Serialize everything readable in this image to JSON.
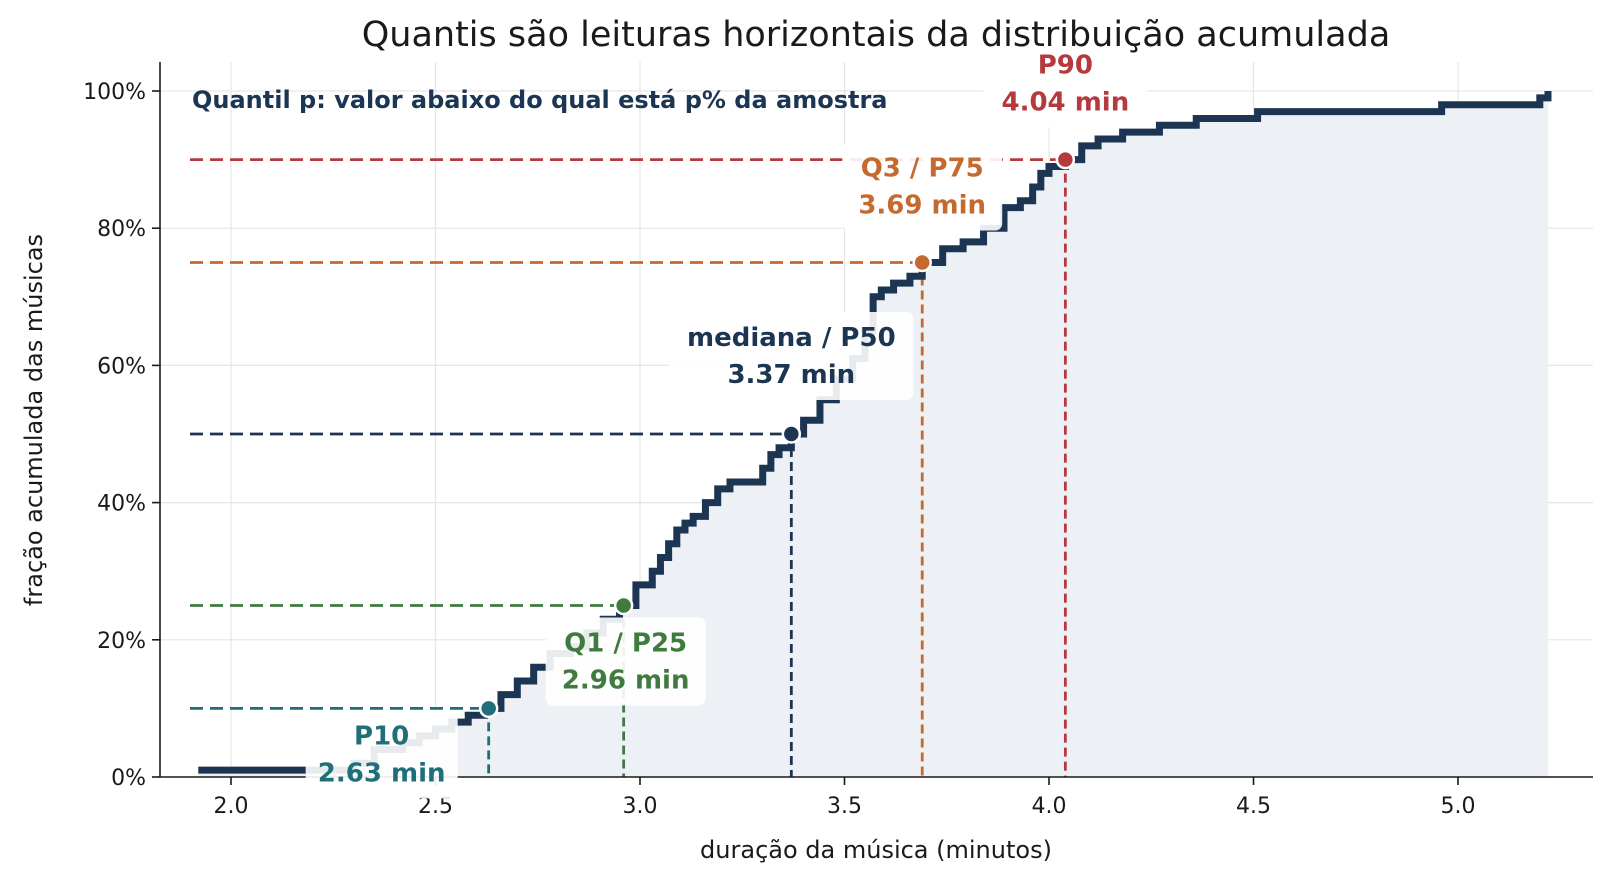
{
  "chart_data": {
    "type": "line",
    "step": "post",
    "title": "Quantis são leituras horizontais da distribuição acumulada",
    "subtitle": "Quantil p: valor abaixo do qual está p% da amostra",
    "xlabel": "duração da música (minutos)",
    "ylabel": "fração acumulada das músicas",
    "xlim": [
      1.85,
      5.3
    ],
    "ylim": [
      0,
      1.04
    ],
    "xticks": [
      2.0,
      2.5,
      3.0,
      3.5,
      4.0,
      4.5,
      5.0
    ],
    "xtick_labels": [
      "2.0",
      "2.5",
      "3.0",
      "3.5",
      "4.0",
      "4.5",
      "5.0"
    ],
    "yticks": [
      0,
      0.2,
      0.4,
      0.6,
      0.8,
      1.0
    ],
    "ytick_labels": [
      "0%",
      "20%",
      "40%",
      "60%",
      "80%",
      "100%"
    ],
    "grid": true,
    "colors": {
      "ecdf": "#1c3552",
      "fill": "#edf1f5",
      "p10": "#1f6f78",
      "q1": "#3f7a3e",
      "median": "#1c3552",
      "q3": "#c56a2e",
      "p90": "#b63a3d"
    },
    "series": [
      {
        "x": [
          1.92,
          2.3,
          2.35,
          2.42,
          2.46,
          2.5,
          2.54,
          2.58,
          2.62,
          2.66,
          2.7,
          2.74,
          2.78,
          2.83,
          2.87,
          2.91,
          2.95,
          2.99,
          3.03,
          3.05,
          3.07,
          3.09,
          3.11,
          3.13,
          3.16,
          3.19,
          3.22,
          3.26,
          3.3,
          3.32,
          3.34,
          3.37,
          3.4,
          3.44,
          3.48,
          3.52,
          3.55,
          3.57,
          3.59,
          3.62,
          3.66,
          3.69,
          3.74,
          3.79,
          3.84,
          3.89,
          3.93,
          3.96,
          3.98,
          4.0,
          4.04,
          4.08,
          4.12,
          4.18,
          4.27,
          4.36,
          4.51,
          4.96,
          5.2,
          5.22
        ],
        "y": [
          0.01,
          0.02,
          0.04,
          0.05,
          0.06,
          0.07,
          0.08,
          0.09,
          0.1,
          0.12,
          0.14,
          0.16,
          0.18,
          0.19,
          0.21,
          0.23,
          0.25,
          0.28,
          0.3,
          0.32,
          0.34,
          0.36,
          0.37,
          0.38,
          0.4,
          0.42,
          0.43,
          0.43,
          0.45,
          0.47,
          0.48,
          0.5,
          0.52,
          0.55,
          0.58,
          0.61,
          0.65,
          0.7,
          0.71,
          0.72,
          0.73,
          0.75,
          0.77,
          0.78,
          0.8,
          0.83,
          0.84,
          0.86,
          0.88,
          0.89,
          0.9,
          0.92,
          0.93,
          0.94,
          0.95,
          0.96,
          0.97,
          0.98,
          0.99,
          1.0
        ]
      }
    ],
    "quantiles": [
      {
        "key": "p10",
        "p": 0.1,
        "value": 2.63,
        "name": "P10",
        "value_label": "2.63 min"
      },
      {
        "key": "q1",
        "p": 0.25,
        "value": 2.96,
        "name": "Q1 / P25",
        "value_label": "2.96 min"
      },
      {
        "key": "median",
        "p": 0.5,
        "value": 3.37,
        "name": "mediana / P50",
        "value_label": "3.37 min"
      },
      {
        "key": "q3",
        "p": 0.75,
        "value": 3.69,
        "name": "Q3 / P75",
        "value_label": "3.69 min"
      },
      {
        "key": "p90",
        "p": 0.9,
        "value": 4.04,
        "name": "P90",
        "value_label": "4.04 min"
      }
    ]
  }
}
